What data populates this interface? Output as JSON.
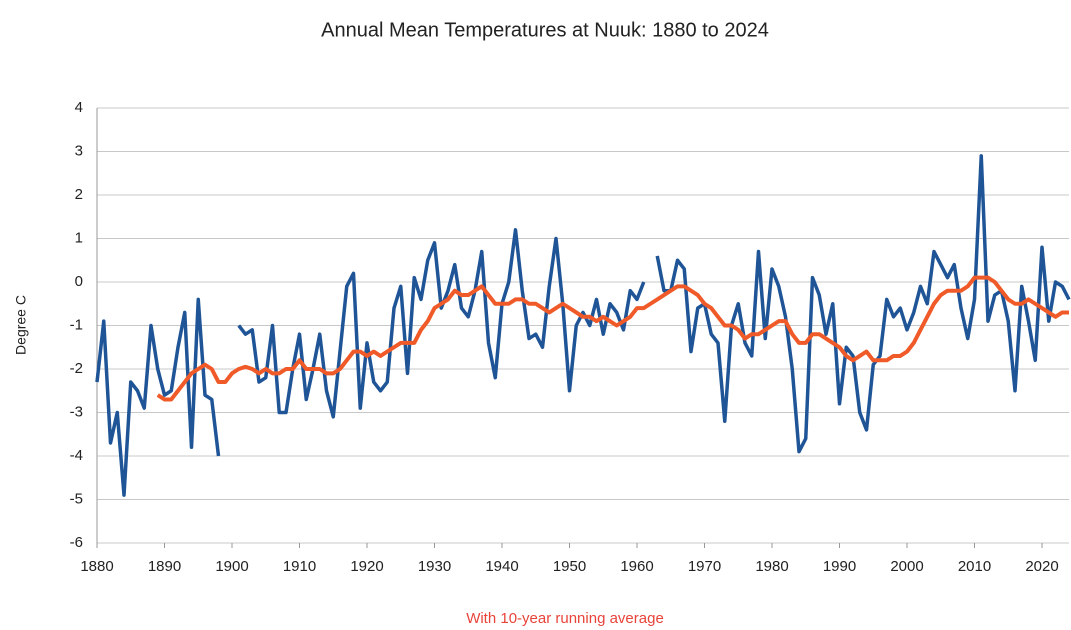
{
  "chart_data": {
    "type": "line",
    "title": "Annual Mean Temperatures at Nuuk: 1880 to 2024",
    "y_label": "Degree C",
    "caption": "With 10-year running average",
    "x": [
      1880,
      1881,
      1882,
      1883,
      1884,
      1885,
      1886,
      1887,
      1888,
      1889,
      1890,
      1891,
      1892,
      1893,
      1894,
      1895,
      1896,
      1897,
      1898,
      1899,
      1900,
      1901,
      1902,
      1903,
      1904,
      1905,
      1906,
      1907,
      1908,
      1909,
      1910,
      1911,
      1912,
      1913,
      1914,
      1915,
      1916,
      1917,
      1918,
      1919,
      1920,
      1921,
      1922,
      1923,
      1924,
      1925,
      1926,
      1927,
      1928,
      1929,
      1930,
      1931,
      1932,
      1933,
      1934,
      1935,
      1936,
      1937,
      1938,
      1939,
      1940,
      1941,
      1942,
      1943,
      1944,
      1945,
      1946,
      1947,
      1948,
      1949,
      1950,
      1951,
      1952,
      1953,
      1954,
      1955,
      1956,
      1957,
      1958,
      1959,
      1960,
      1961,
      1962,
      1963,
      1964,
      1965,
      1966,
      1967,
      1968,
      1969,
      1970,
      1971,
      1972,
      1973,
      1974,
      1975,
      1976,
      1977,
      1978,
      1979,
      1980,
      1981,
      1982,
      1983,
      1984,
      1985,
      1986,
      1987,
      1988,
      1989,
      1990,
      1991,
      1992,
      1993,
      1994,
      1995,
      1996,
      1997,
      1998,
      1999,
      2000,
      2001,
      2002,
      2003,
      2004,
      2005,
      2006,
      2007,
      2008,
      2009,
      2010,
      2011,
      2012,
      2013,
      2014,
      2015,
      2016,
      2017,
      2018,
      2019,
      2020,
      2021,
      2022,
      2023,
      2024
    ],
    "series": [
      {
        "color": "#1f5597",
        "values": [
          -2.3,
          -0.9,
          -3.7,
          -3.0,
          -4.9,
          -2.3,
          -2.5,
          -2.9,
          -1.0,
          -2.0,
          -2.6,
          -2.5,
          -1.5,
          -0.7,
          -3.8,
          -0.4,
          -2.6,
          -2.7,
          -4.0,
          null,
          null,
          -1.0,
          -1.2,
          -1.1,
          -2.3,
          -2.2,
          -1.0,
          -3.0,
          -3.0,
          -2.0,
          -1.2,
          -2.7,
          -2.0,
          -1.2,
          -2.5,
          -3.1,
          -1.6,
          -0.1,
          0.2,
          -2.9,
          -1.4,
          -2.3,
          -2.5,
          -2.3,
          -0.6,
          -0.1,
          -2.1,
          0.1,
          -0.4,
          0.5,
          0.9,
          -0.6,
          -0.2,
          0.4,
          -0.6,
          -0.8,
          -0.2,
          0.7,
          -1.4,
          -2.2,
          -0.5,
          0.0,
          1.2,
          -0.2,
          -1.3,
          -1.2,
          -1.5,
          -0.1,
          1.0,
          -0.5,
          -2.5,
          -1.0,
          -0.7,
          -1.0,
          -0.4,
          -1.2,
          -0.5,
          -0.7,
          -1.1,
          -0.2,
          -0.4,
          0.0,
          null,
          0.6,
          -0.2,
          -0.2,
          0.5,
          0.3,
          -1.6,
          -0.6,
          -0.5,
          -1.2,
          -1.4,
          -3.2,
          -1.0,
          -0.5,
          -1.4,
          -1.7,
          0.7,
          -1.3,
          0.3,
          -0.1,
          -0.8,
          -2.0,
          -3.9,
          -3.6,
          0.1,
          -0.3,
          -1.2,
          -0.5,
          -2.8,
          -1.5,
          -1.7,
          -3.0,
          -3.4,
          -1.9,
          -1.7,
          -0.4,
          -0.8,
          -0.6,
          -1.1,
          -0.7,
          -0.1,
          -0.5,
          0.7,
          0.4,
          0.1,
          0.4,
          -0.6,
          -1.3,
          -0.4,
          2.9,
          -0.9,
          -0.3,
          -0.2,
          -0.9,
          -2.5,
          -0.1,
          -0.9,
          -1.8,
          0.8,
          -0.9,
          0.0,
          -0.1,
          -0.4
        ]
      },
      {
        "color": "#f05a28",
        "values": [
          null,
          null,
          null,
          null,
          null,
          null,
          null,
          null,
          null,
          -2.6,
          -2.7,
          -2.7,
          -2.5,
          -2.3,
          -2.1,
          -2.0,
          -1.9,
          -2.0,
          -2.3,
          -2.3,
          -2.1,
          -2.0,
          -1.95,
          -2.0,
          -2.1,
          -2.0,
          -2.1,
          -2.1,
          -2.0,
          -2.0,
          -1.8,
          -2.0,
          -2.0,
          -2.0,
          -2.1,
          -2.1,
          -2.0,
          -1.8,
          -1.6,
          -1.6,
          -1.7,
          -1.6,
          -1.7,
          -1.6,
          -1.5,
          -1.4,
          -1.4,
          -1.4,
          -1.1,
          -0.9,
          -0.6,
          -0.5,
          -0.4,
          -0.2,
          -0.3,
          -0.3,
          -0.2,
          -0.1,
          -0.3,
          -0.5,
          -0.5,
          -0.5,
          -0.4,
          -0.4,
          -0.5,
          -0.5,
          -0.6,
          -0.7,
          -0.6,
          -0.5,
          -0.6,
          -0.7,
          -0.8,
          -0.8,
          -0.9,
          -0.8,
          -0.9,
          -1.0,
          -0.9,
          -0.8,
          -0.6,
          -0.6,
          -0.5,
          -0.4,
          -0.3,
          -0.2,
          -0.1,
          -0.1,
          -0.2,
          -0.3,
          -0.5,
          -0.6,
          -0.8,
          -1.0,
          -1.0,
          -1.1,
          -1.3,
          -1.2,
          -1.2,
          -1.1,
          -1.0,
          -0.9,
          -0.9,
          -1.2,
          -1.4,
          -1.4,
          -1.2,
          -1.2,
          -1.3,
          -1.4,
          -1.5,
          -1.7,
          -1.8,
          -1.7,
          -1.6,
          -1.8,
          -1.8,
          -1.8,
          -1.7,
          -1.7,
          -1.6,
          -1.4,
          -1.1,
          -0.8,
          -0.5,
          -0.3,
          -0.2,
          -0.2,
          -0.2,
          -0.1,
          0.1,
          0.1,
          0.1,
          0.0,
          -0.2,
          -0.4,
          -0.5,
          -0.5,
          -0.4,
          -0.5,
          -0.6,
          -0.7,
          -0.8,
          -0.7,
          -0.7
        ]
      }
    ],
    "xlim": [
      1880,
      2024
    ],
    "xticks": [
      1880,
      1890,
      1900,
      1910,
      1920,
      1930,
      1940,
      1950,
      1960,
      1970,
      1980,
      1990,
      2000,
      2010,
      2020
    ],
    "ylim": [
      -6,
      4
    ],
    "yticks": [
      -6,
      -5,
      -4,
      -3,
      -2,
      -1,
      0,
      1,
      2,
      3,
      4
    ],
    "grid": true
  }
}
